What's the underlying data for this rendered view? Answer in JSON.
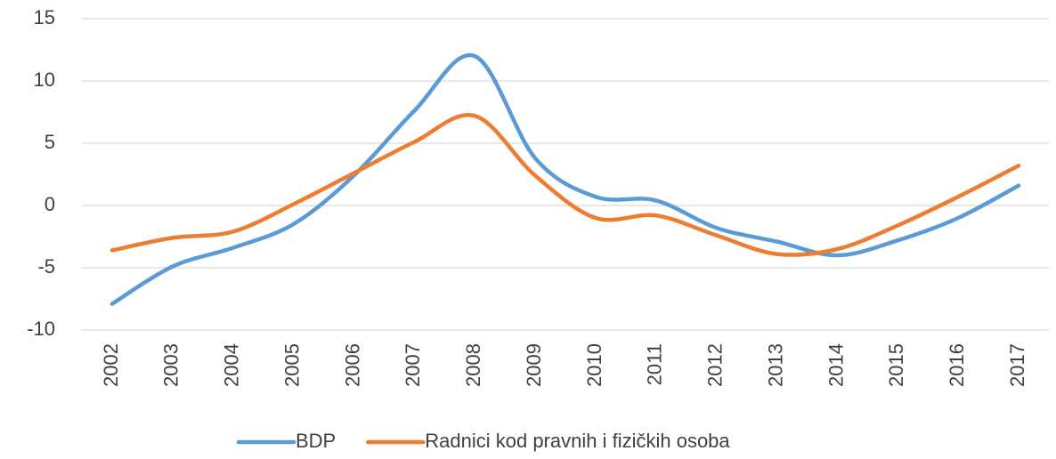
{
  "chart_data": {
    "type": "line",
    "categories": [
      "2002",
      "2003",
      "2004",
      "2005",
      "2006",
      "2007",
      "2008",
      "2009",
      "2010",
      "2011",
      "2012",
      "2013",
      "2014",
      "2015",
      "2016",
      "2017"
    ],
    "series": [
      {
        "name": "BDP",
        "color": "#5b9bd5",
        "values": [
          -7.9,
          -4.9,
          -3.4,
          -1.5,
          2.4,
          7.6,
          12.0,
          3.8,
          0.7,
          0.4,
          -1.8,
          -2.9,
          -4.0,
          -2.8,
          -1.0,
          1.6
        ]
      },
      {
        "name": "Radnici kod pravnih i fizičkih osoba",
        "color": "#ed7d31",
        "values": [
          -3.6,
          -2.6,
          -2.1,
          0.1,
          2.6,
          5.1,
          7.2,
          2.4,
          -1.0,
          -0.8,
          -2.4,
          -3.9,
          -3.5,
          -1.6,
          0.7,
          3.2
        ]
      }
    ],
    "ylim": [
      -10,
      15
    ],
    "yticks": [
      -10,
      -5,
      0,
      5,
      10,
      15
    ],
    "grid": true,
    "legend": "bottom"
  }
}
